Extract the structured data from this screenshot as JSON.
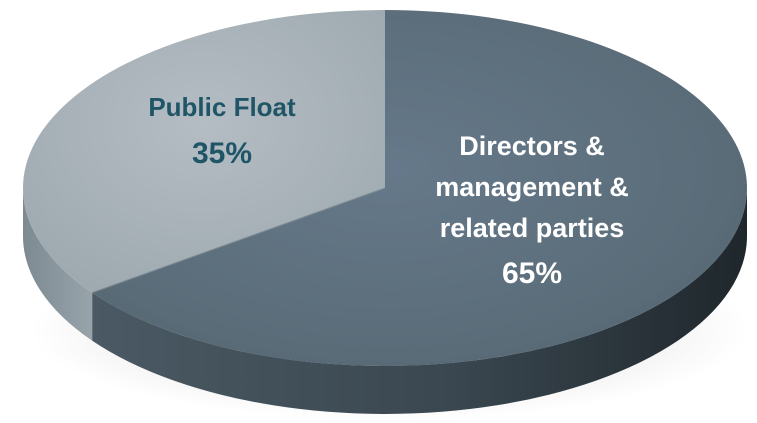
{
  "chart_data": {
    "type": "pie",
    "title": "",
    "style": "3d",
    "slices": [
      {
        "label": "Public Float",
        "value": 35,
        "value_label": "35%",
        "top_color": "#a8b2b9",
        "side_color": "#86929a",
        "text_color": "#1f5566"
      },
      {
        "label": "Directors & management & related parties",
        "label_lines": [
          "Directors &",
          "management &",
          "related parties"
        ],
        "value": 65,
        "value_label": "65%",
        "top_color": "#5b6d79",
        "side_color": "#3a4750",
        "text_color": "#ffffff"
      }
    ]
  }
}
